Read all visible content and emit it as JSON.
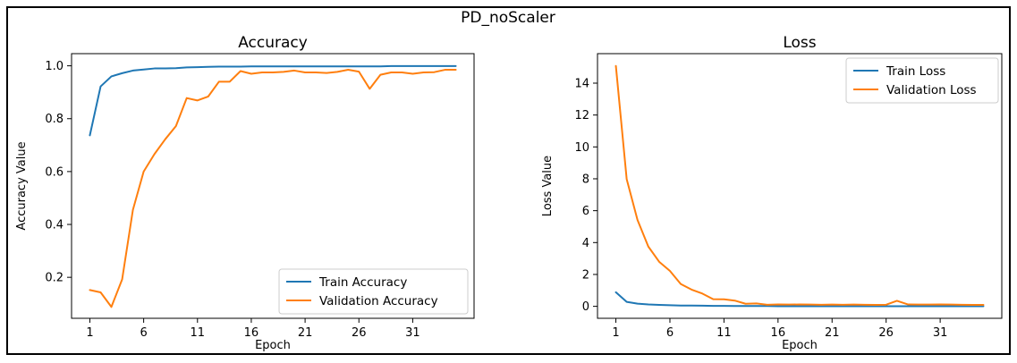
{
  "figure": {
    "suptitle": "PD_noScaler"
  },
  "chart_data": [
    {
      "type": "line",
      "title": "Accuracy",
      "xlabel": "Epoch",
      "ylabel": "Accuracy Value",
      "x": [
        1,
        2,
        3,
        4,
        5,
        6,
        7,
        8,
        9,
        10,
        11,
        12,
        13,
        14,
        15,
        16,
        17,
        18,
        19,
        20,
        21,
        22,
        23,
        24,
        25,
        26,
        27,
        28,
        29,
        30,
        31,
        32,
        33,
        34,
        35
      ],
      "xticks": [
        1,
        6,
        11,
        16,
        21,
        26,
        31
      ],
      "xlim": [
        -0.7,
        36.7
      ],
      "yticks": [
        0.2,
        0.4,
        0.6,
        0.8,
        1.0
      ],
      "ytick_labels": [
        "0.2",
        "0.4",
        "0.6",
        "0.8",
        "1.0"
      ],
      "ylim": [
        0.045,
        1.046
      ],
      "grid": false,
      "legend_position": "lower-right",
      "series": [
        {
          "name": "Train Accuracy",
          "color": "#1f77b4",
          "values": [
            0.737,
            0.922,
            0.96,
            0.972,
            0.982,
            0.986,
            0.99,
            0.99,
            0.991,
            0.994,
            0.995,
            0.996,
            0.997,
            0.997,
            0.997,
            0.998,
            0.998,
            0.998,
            0.998,
            0.998,
            0.998,
            0.998,
            0.998,
            0.998,
            0.998,
            0.998,
            0.998,
            0.998,
            0.999,
            0.999,
            0.999,
            0.999,
            0.999,
            0.999,
            0.999
          ]
        },
        {
          "name": "Validation Accuracy",
          "color": "#ff7f0e",
          "values": [
            0.152,
            0.143,
            0.088,
            0.192,
            0.455,
            0.6,
            0.666,
            0.722,
            0.772,
            0.878,
            0.869,
            0.884,
            0.94,
            0.94,
            0.98,
            0.97,
            0.975,
            0.975,
            0.977,
            0.982,
            0.975,
            0.975,
            0.973,
            0.977,
            0.985,
            0.978,
            0.913,
            0.966,
            0.975,
            0.975,
            0.97,
            0.975,
            0.976,
            0.985,
            0.985
          ]
        }
      ]
    },
    {
      "type": "line",
      "title": "Loss",
      "xlabel": "Epoch",
      "ylabel": "Loss Value",
      "x": [
        1,
        2,
        3,
        4,
        5,
        6,
        7,
        8,
        9,
        10,
        11,
        12,
        13,
        14,
        15,
        16,
        17,
        18,
        19,
        20,
        21,
        22,
        23,
        24,
        25,
        26,
        27,
        28,
        29,
        30,
        31,
        32,
        33,
        34,
        35
      ],
      "xticks": [
        1,
        6,
        11,
        16,
        21,
        26,
        31
      ],
      "xlim": [
        -0.7,
        36.7
      ],
      "yticks": [
        0,
        2,
        4,
        6,
        8,
        10,
        12,
        14
      ],
      "ytick_labels": [
        "0",
        "2",
        "4",
        "6",
        "8",
        "10",
        "12",
        "14"
      ],
      "ylim": [
        -0.75,
        15.85
      ],
      "grid": false,
      "legend_position": "upper-right",
      "series": [
        {
          "name": "Train Loss",
          "color": "#1f77b4",
          "values": [
            0.88,
            0.28,
            0.17,
            0.12,
            0.09,
            0.07,
            0.05,
            0.05,
            0.04,
            0.03,
            0.03,
            0.02,
            0.02,
            0.02,
            0.02,
            0.01,
            0.01,
            0.01,
            0.01,
            0.01,
            0.01,
            0.01,
            0.01,
            0.01,
            0.01,
            0.01,
            0.01,
            0.01,
            0.01,
            0.01,
            0.01,
            0.01,
            0.01,
            0.01,
            0.01
          ]
        },
        {
          "name": "Validation Loss",
          "color": "#ff7f0e",
          "values": [
            15.08,
            7.98,
            5.42,
            3.75,
            2.8,
            2.22,
            1.4,
            1.05,
            0.8,
            0.45,
            0.44,
            0.36,
            0.16,
            0.18,
            0.1,
            0.12,
            0.11,
            0.12,
            0.11,
            0.1,
            0.11,
            0.1,
            0.11,
            0.1,
            0.09,
            0.1,
            0.35,
            0.12,
            0.11,
            0.11,
            0.12,
            0.11,
            0.1,
            0.09,
            0.09
          ]
        }
      ]
    }
  ]
}
